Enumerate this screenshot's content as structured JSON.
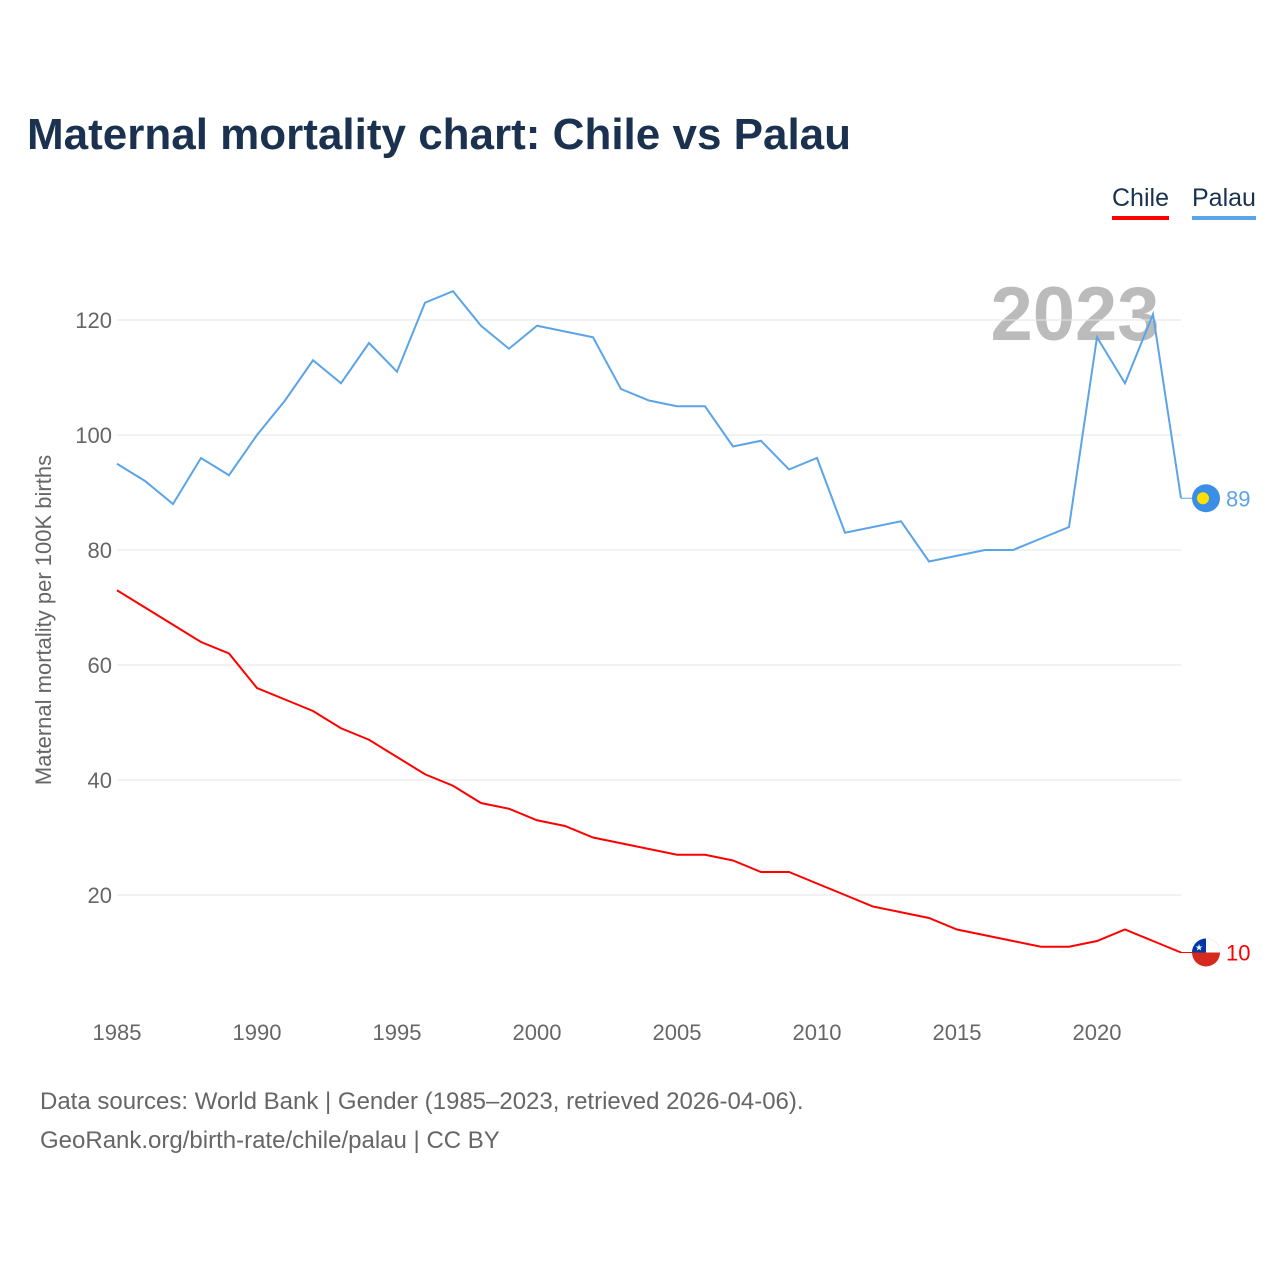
{
  "title": "Maternal mortality chart: Chile vs Palau",
  "footer": {
    "line1": "Data sources: World Bank | Gender (1985–2023, retrieved 2026-04-06).",
    "line2": "GeoRank.org/birth-rate/chile/palau | CC BY"
  },
  "chart_data": {
    "type": "line",
    "title": "Maternal mortality chart: Chile vs Palau",
    "ylabel": "Maternal mortality per 100K births",
    "xlabel": "",
    "year_label": "2023",
    "xlim": [
      1985,
      2023
    ],
    "ylim": [
      0,
      130
    ],
    "xticks": [
      1985,
      1990,
      1995,
      2000,
      2005,
      2010,
      2015,
      2020
    ],
    "yticks": [
      20,
      40,
      60,
      80,
      100,
      120
    ],
    "grid": true,
    "legend_placement": "top-right",
    "x": [
      1985,
      1986,
      1987,
      1988,
      1989,
      1990,
      1991,
      1992,
      1993,
      1994,
      1995,
      1996,
      1997,
      1998,
      1999,
      2000,
      2001,
      2002,
      2003,
      2004,
      2005,
      2006,
      2007,
      2008,
      2009,
      2010,
      2011,
      2012,
      2013,
      2014,
      2015,
      2016,
      2017,
      2018,
      2019,
      2020,
      2021,
      2022,
      2023
    ],
    "series": [
      {
        "name": "Chile",
        "color": "#ff0000",
        "end_label": "10",
        "values": [
          73,
          70,
          67,
          64,
          62,
          56,
          54,
          52,
          49,
          47,
          44,
          41,
          39,
          36,
          35,
          33,
          32,
          30,
          29,
          28,
          27,
          27,
          26,
          24,
          24,
          22,
          20,
          18,
          17,
          16,
          14,
          13,
          12,
          11,
          11,
          12,
          14,
          12,
          10
        ]
      },
      {
        "name": "Palau",
        "color": "#5ba4e8",
        "end_label": "89",
        "values": [
          95,
          92,
          88,
          96,
          93,
          100,
          106,
          113,
          109,
          116,
          111,
          123,
          125,
          119,
          115,
          119,
          118,
          117,
          108,
          106,
          105,
          105,
          98,
          99,
          94,
          96,
          83,
          84,
          85,
          78,
          79,
          80,
          80,
          82,
          84,
          117,
          109,
          121,
          89
        ]
      }
    ]
  }
}
